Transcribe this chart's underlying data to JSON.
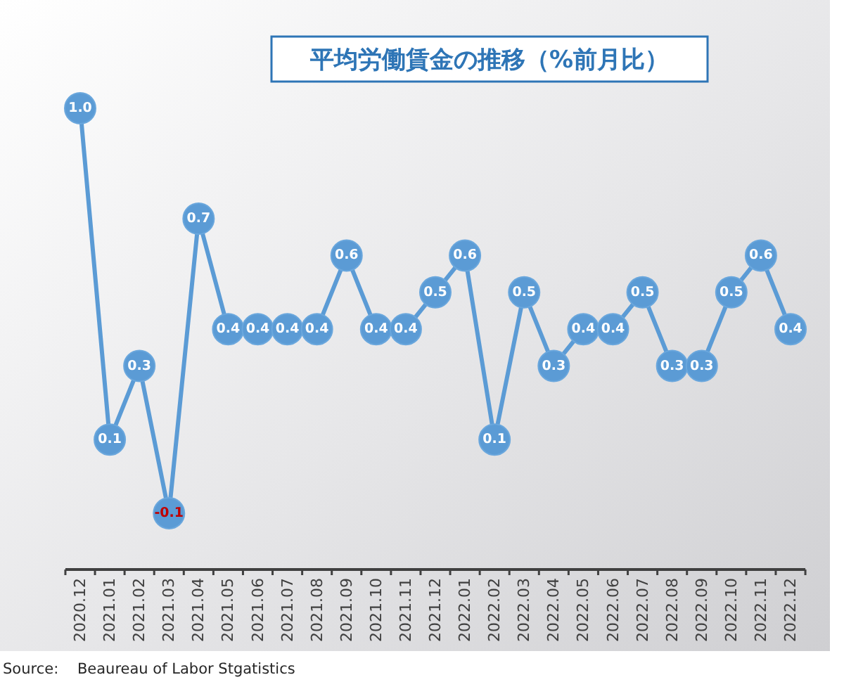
{
  "chart_data": {
    "type": "line",
    "title": "平均労働賃金の推移（%前月比）",
    "categories": [
      "2020.12",
      "2021.01",
      "2021.02",
      "2021.03",
      "2021.04",
      "2021.05",
      "2021.06",
      "2021.07",
      "2021.08",
      "2021.09",
      "2021.10",
      "2021.11",
      "2021.12",
      "2022.01",
      "2022.02",
      "2022.03",
      "2022.04",
      "2022.05",
      "2022.06",
      "2022.07",
      "2022.08",
      "2022.09",
      "2022.10",
      "2022.11",
      "2022.12"
    ],
    "values": [
      1.0,
      0.1,
      0.3,
      -0.1,
      0.7,
      0.4,
      0.4,
      0.4,
      0.4,
      0.6,
      0.4,
      0.4,
      0.5,
      0.6,
      0.1,
      0.5,
      0.3,
      0.4,
      0.4,
      0.5,
      0.3,
      0.3,
      0.5,
      0.6,
      0.4
    ],
    "value_labels": [
      "1.0",
      "0.1",
      "0.3",
      "-0.1",
      "0.7",
      "0.4",
      "0.4",
      "0.4",
      "0.4",
      "0.6",
      "0.4",
      "0.4",
      "0.5",
      "0.6",
      "0.1",
      "0.5",
      "0.3",
      "0.4",
      "0.4",
      "0.5",
      "0.3",
      "0.3",
      "0.5",
      "0.6",
      "0.4"
    ],
    "color": "#5b9bd5",
    "marker": "circle",
    "tick_labels": "x",
    "annotations": [
      "Source:    Beaureau of Labor Stgatistics"
    ]
  }
}
